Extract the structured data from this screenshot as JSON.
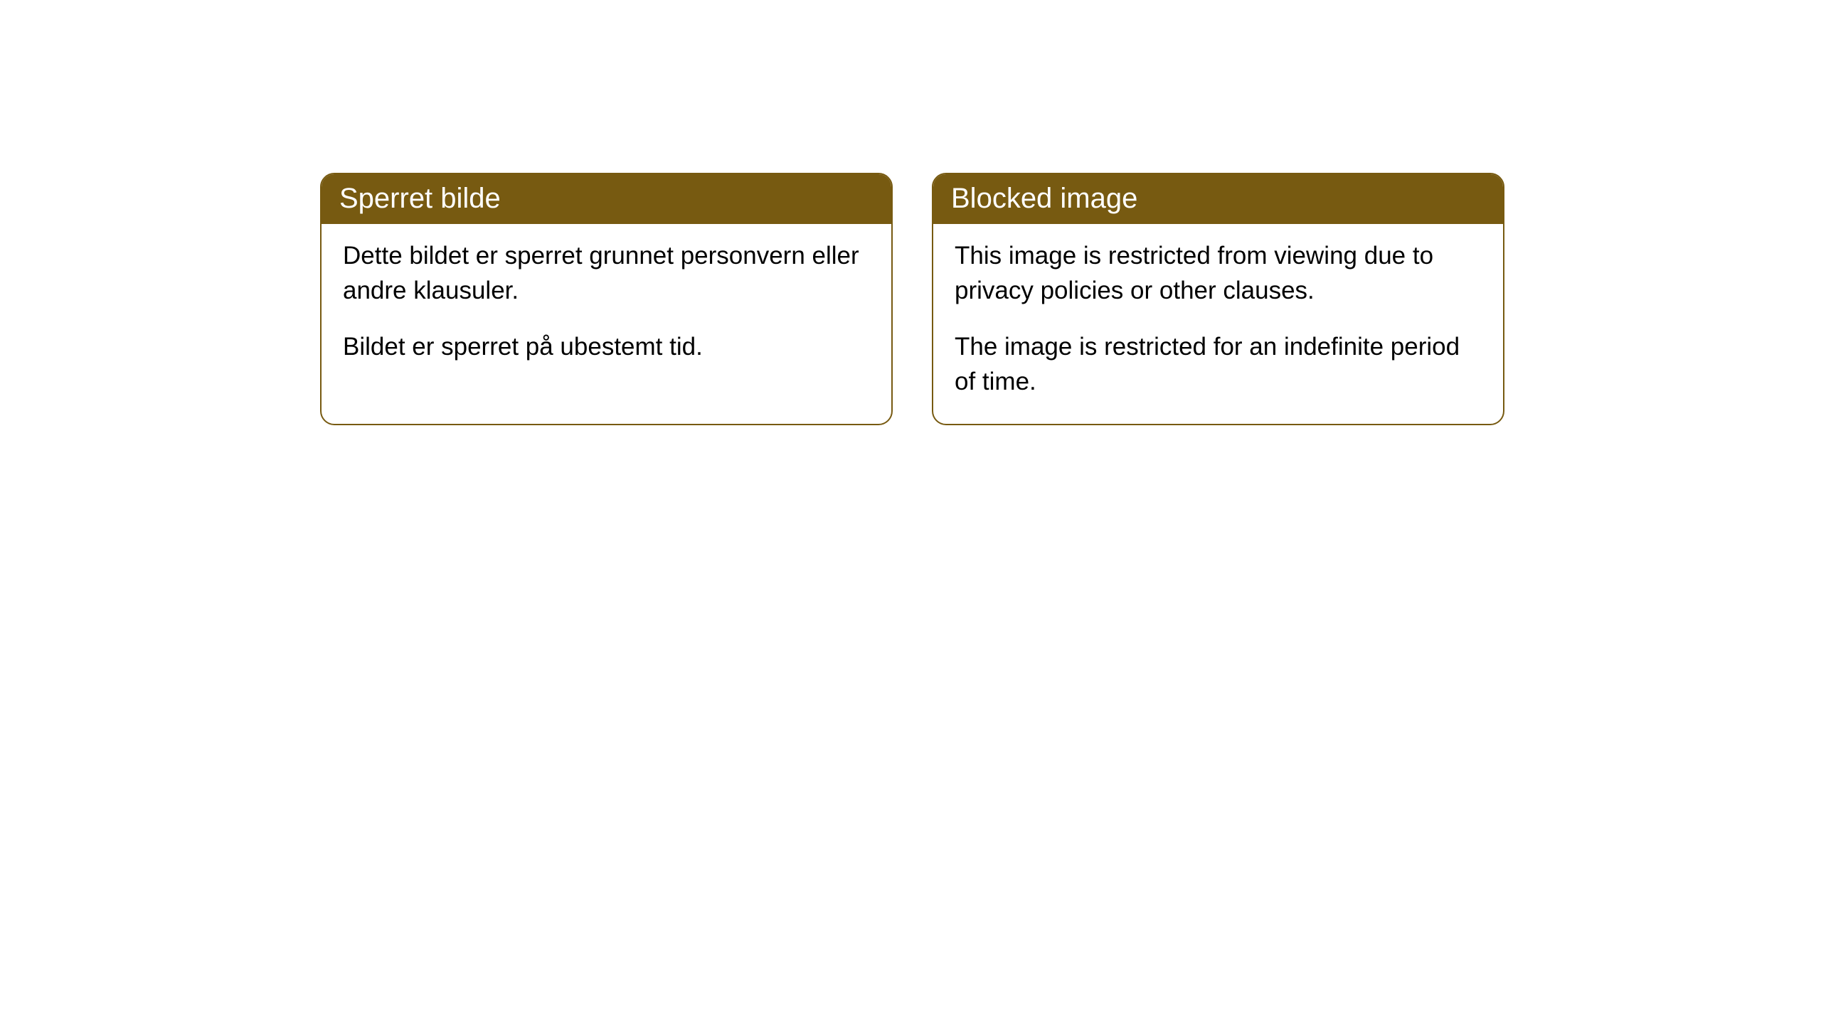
{
  "cards": [
    {
      "title": "Sperret bilde",
      "paragraph1": "Dette bildet er sperret grunnet personvern eller andre klausuler.",
      "paragraph2": "Bildet er sperret på ubestemt tid."
    },
    {
      "title": "Blocked image",
      "paragraph1": "This image is restricted from viewing due to privacy policies or other clauses.",
      "paragraph2": "The image is restricted for an indefinite period of time."
    }
  ],
  "styling": {
    "header_background_color": "#775a11",
    "header_text_color": "#ffffff",
    "border_color": "#775a11",
    "body_background_color": "#ffffff",
    "body_text_color": "#000000",
    "border_radius": "20px",
    "header_fontsize": 40,
    "body_fontsize": 35
  }
}
